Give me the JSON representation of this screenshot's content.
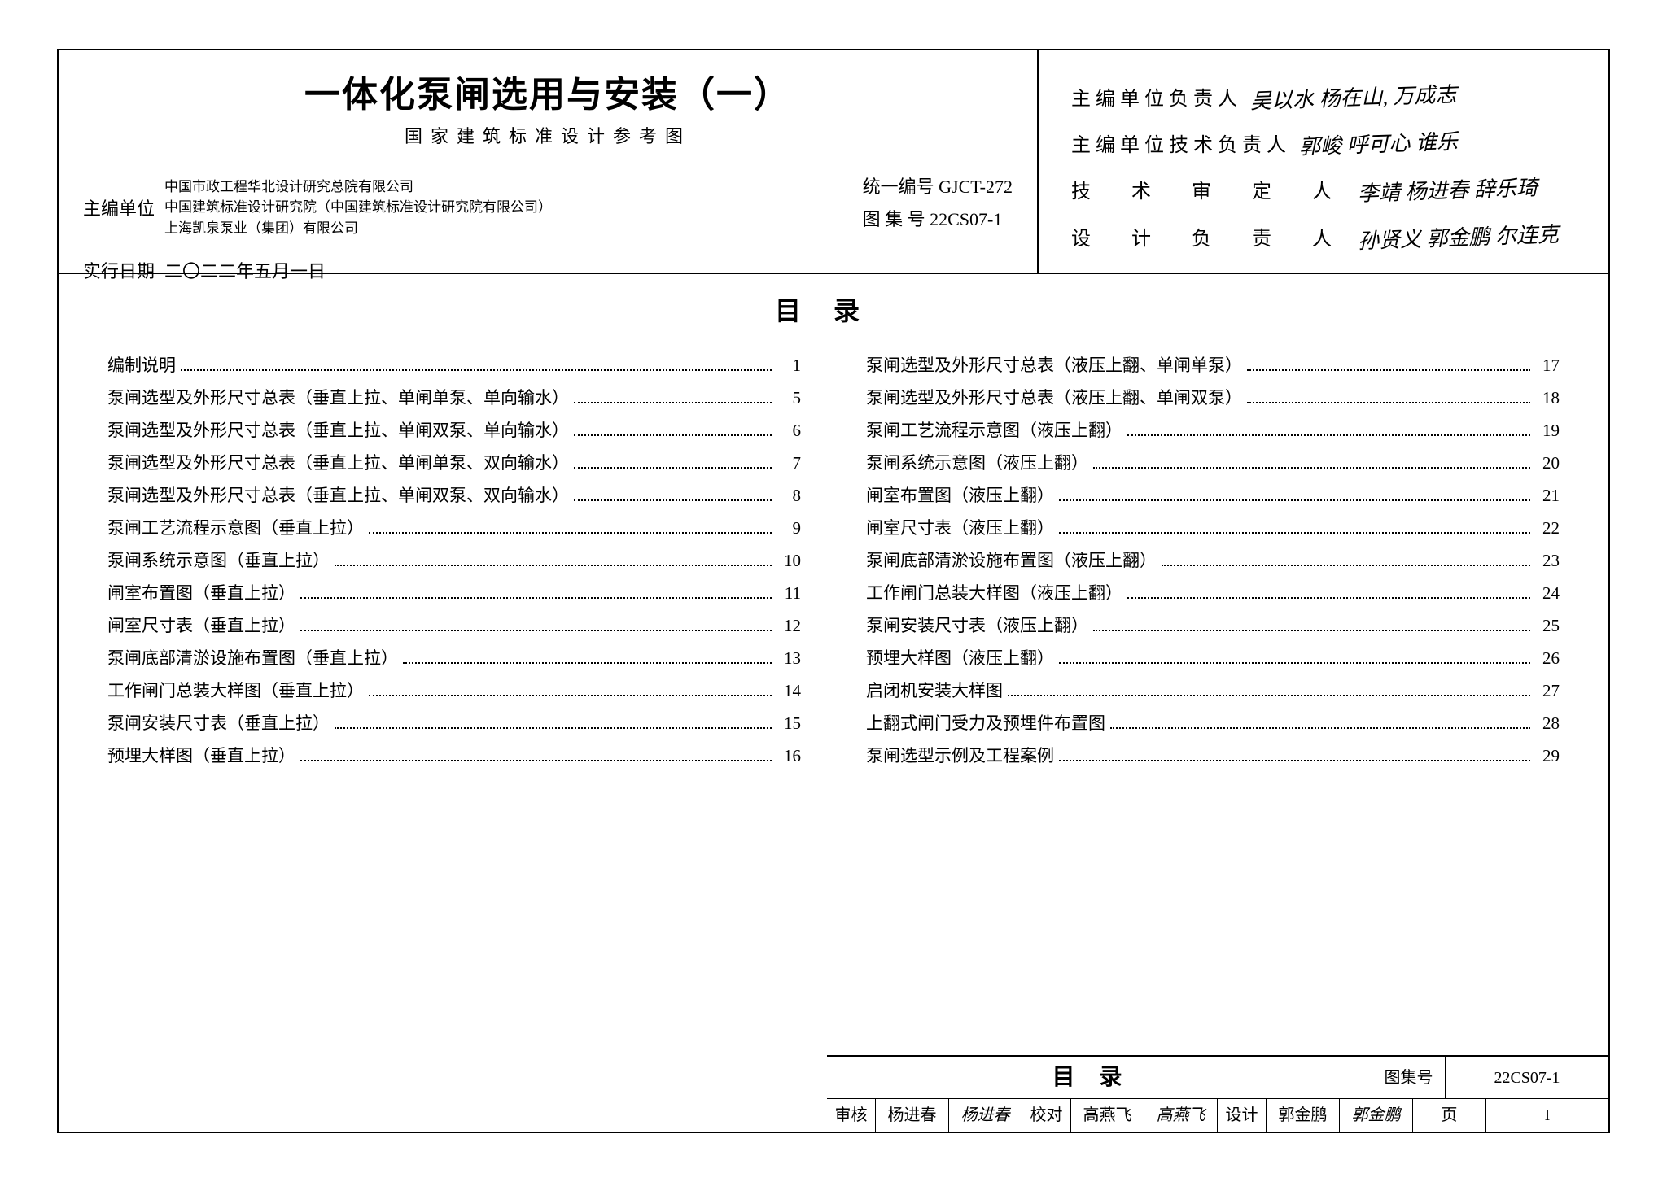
{
  "header": {
    "main_title": "一体化泵闸选用与安装（一）",
    "sub_title": "国家建筑标准设计参考图",
    "editor_label": "主编单位",
    "editor_orgs": [
      "中国市政工程华北设计研究总院有限公司",
      "中国建筑标准设计研究院（中国建筑标准设计研究院有限公司）",
      "上海凯泉泵业（集团）有限公司"
    ],
    "code_label": "统一编号",
    "code_value": "GJCT-272",
    "atlas_label": "图 集 号",
    "atlas_value": "22CS07-1",
    "date_label": "实行日期",
    "date_value": "二〇二二年五月一日"
  },
  "signatures": [
    {
      "label": "主编单位负责人",
      "spread": false,
      "sigs": "吴以水  杨在山,  万成志"
    },
    {
      "label": "主编单位技术负责人",
      "spread": false,
      "sigs": "郭峻  呼可心  谁乐"
    },
    {
      "label": "技 术 审 定 人",
      "spread": true,
      "sigs": "李靖  杨进春  辞乐琦"
    },
    {
      "label": "设 计 负 责 人",
      "spread": true,
      "sigs": "孙贤义  郭金鹏  尔连克"
    }
  ],
  "toc": {
    "title": "目录",
    "left": [
      {
        "t": "编制说明",
        "p": "1"
      },
      {
        "t": "泵闸选型及外形尺寸总表（垂直上拉、单闸单泵、单向输水）",
        "p": "5"
      },
      {
        "t": "泵闸选型及外形尺寸总表（垂直上拉、单闸双泵、单向输水）",
        "p": "6"
      },
      {
        "t": "泵闸选型及外形尺寸总表（垂直上拉、单闸单泵、双向输水）",
        "p": "7"
      },
      {
        "t": "泵闸选型及外形尺寸总表（垂直上拉、单闸双泵、双向输水）",
        "p": "8"
      },
      {
        "t": "泵闸工艺流程示意图（垂直上拉）",
        "p": "9"
      },
      {
        "t": "泵闸系统示意图（垂直上拉）",
        "p": "10"
      },
      {
        "t": "闸室布置图（垂直上拉）",
        "p": "11"
      },
      {
        "t": "闸室尺寸表（垂直上拉）",
        "p": "12"
      },
      {
        "t": "泵闸底部清淤设施布置图（垂直上拉）",
        "p": "13"
      },
      {
        "t": "工作闸门总装大样图（垂直上拉）",
        "p": "14"
      },
      {
        "t": "泵闸安装尺寸表（垂直上拉）",
        "p": "15"
      },
      {
        "t": "预埋大样图（垂直上拉）",
        "p": "16"
      }
    ],
    "right": [
      {
        "t": "泵闸选型及外形尺寸总表（液压上翻、单闸单泵）",
        "p": "17"
      },
      {
        "t": "泵闸选型及外形尺寸总表（液压上翻、单闸双泵）",
        "p": "18"
      },
      {
        "t": "泵闸工艺流程示意图（液压上翻）",
        "p": "19"
      },
      {
        "t": "泵闸系统示意图（液压上翻）",
        "p": "20"
      },
      {
        "t": "闸室布置图（液压上翻）",
        "p": "21"
      },
      {
        "t": "闸室尺寸表（液压上翻）",
        "p": "22"
      },
      {
        "t": "泵闸底部清淤设施布置图（液压上翻）",
        "p": "23"
      },
      {
        "t": "工作闸门总装大样图（液压上翻）",
        "p": "24"
      },
      {
        "t": "泵闸安装尺寸表（液压上翻）",
        "p": "25"
      },
      {
        "t": "预埋大样图（液压上翻）",
        "p": "26"
      },
      {
        "t": "启闭机安装大样图",
        "p": "27"
      },
      {
        "t": "上翻式闸门受力及预埋件布置图",
        "p": "28"
      },
      {
        "t": "泵闸选型示例及工程案例",
        "p": "29"
      }
    ]
  },
  "footer": {
    "title": "目录",
    "atlas_label": "图集号",
    "atlas_value": "22CS07-1",
    "cells": [
      {
        "label": "审核",
        "name": "杨进春",
        "sig": "杨进春"
      },
      {
        "label": "校对",
        "name": "高燕飞",
        "sig": "高燕飞"
      },
      {
        "label": "设计",
        "name": "郭金鹏",
        "sig": "郭金鹏"
      }
    ],
    "page_label": "页",
    "page_value": "I"
  },
  "style": {
    "border_color": "#000000",
    "background": "#ffffff",
    "text_color": "#000000",
    "title_fontsize": 44,
    "body_fontsize": 21
  }
}
